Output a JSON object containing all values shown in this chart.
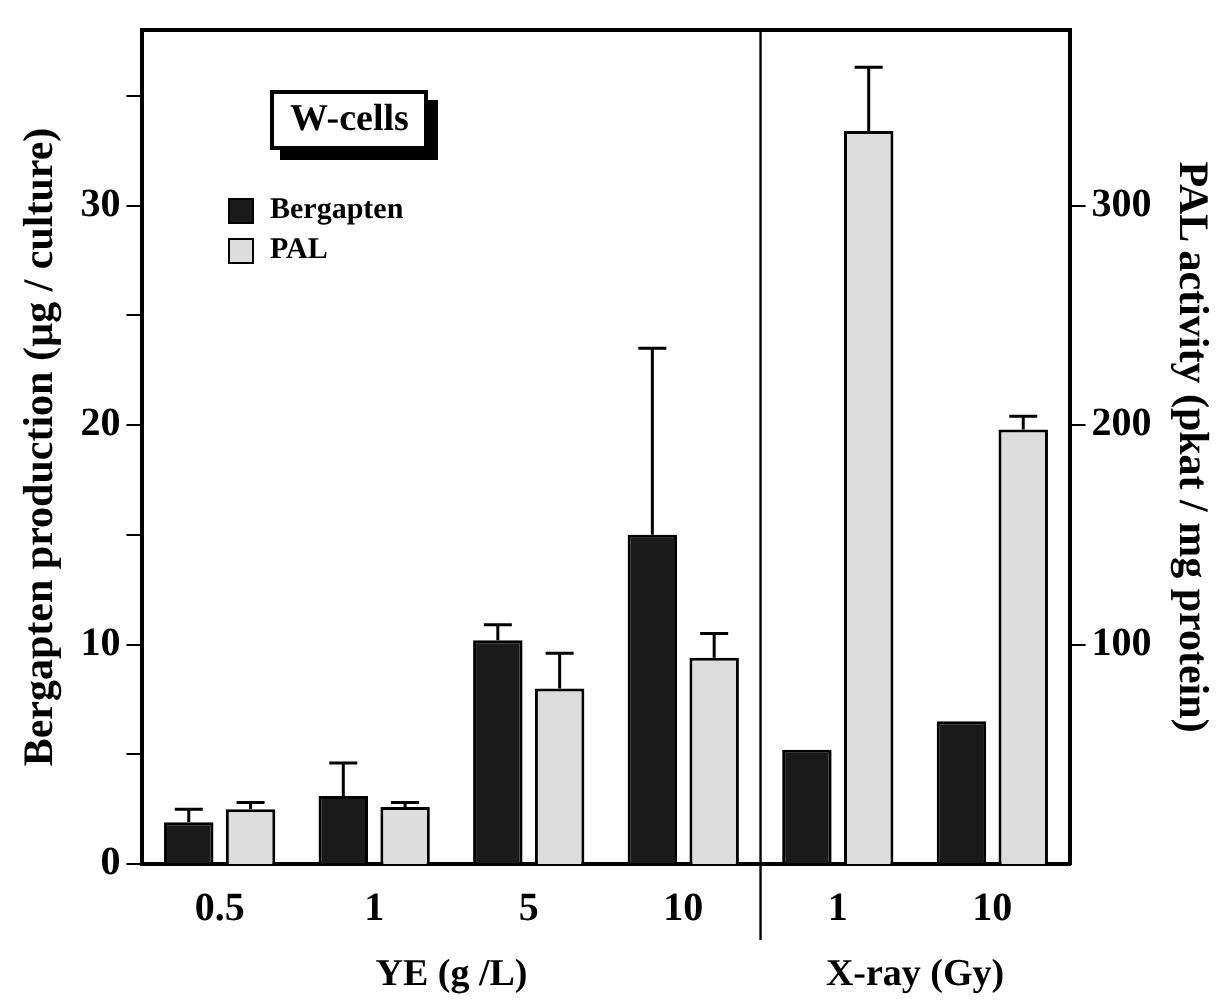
{
  "chart_data": {
    "type": "bar",
    "categories": [
      "0.5",
      "1",
      "5",
      "10",
      "1",
      "10"
    ],
    "ylabel": "Bergapten production (µg / culture)",
    "y2label": "PAL activity (pkat / mg protein)",
    "series": [
      {
        "name": "Bergapten",
        "color": "#1a1a1a",
        "values": [
          1.9,
          3.1,
          10.2,
          15.0,
          5.2,
          6.5
        ],
        "errors": [
          [
            1.9,
            2.5
          ],
          [
            3.1,
            4.6
          ],
          [
            10.2,
            10.9
          ],
          [
            15.0,
            23.5
          ],
          null,
          null
        ]
      },
      {
        "name": "PAL",
        "color": "#dcdcdc",
        "axis": "y2",
        "values": [
          25,
          26,
          80,
          94,
          334,
          198
        ],
        "errors": [
          [
            25,
            28
          ],
          [
            26,
            28
          ],
          [
            80,
            96
          ],
          [
            94,
            105
          ],
          [
            334,
            363
          ],
          [
            198,
            204
          ]
        ]
      }
    ],
    "ylim": [
      0,
      38
    ],
    "yticks": [
      0,
      {
        "value": 5,
        "label": null
      },
      10,
      {
        "value": 15,
        "label": null
      },
      20,
      {
        "value": 25,
        "label": null
      },
      30,
      {
        "value": 35,
        "label": null
      }
    ],
    "y2lim": [
      0,
      380
    ],
    "y2ticks": [
      100,
      200,
      300
    ],
    "annotations": [
      "W-cells",
      "YE (g /L)",
      "X-ray (Gy)"
    ],
    "legend": "top left",
    "grid": false
  }
}
